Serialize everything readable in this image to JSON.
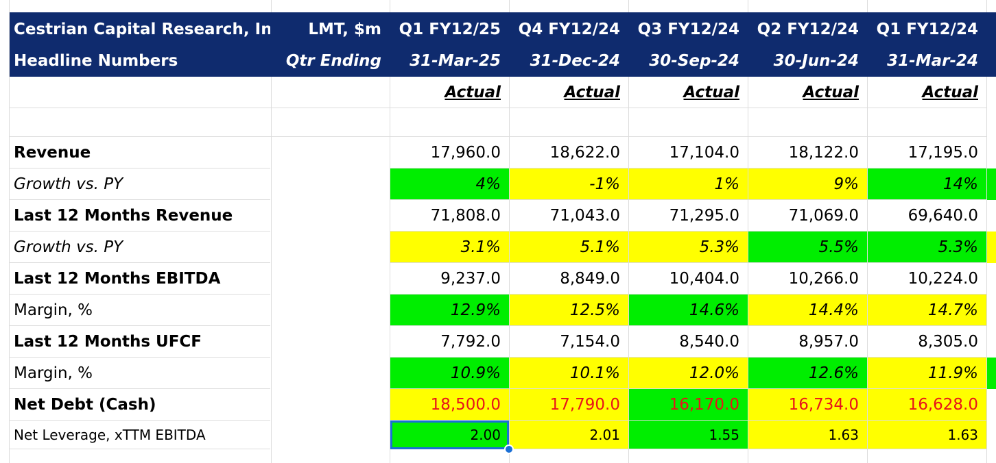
{
  "header": {
    "company": "Cestrian Capital Research, Inc",
    "subtitle": "Headline Numbers",
    "ticker": "LMT, $m",
    "qtr_ending_label": "Qtr Ending",
    "quarters": [
      "Q1 FY12/25",
      "Q4 FY12/24",
      "Q3 FY12/24",
      "Q2 FY12/24",
      "Q1 FY12/24"
    ],
    "dates": [
      "31-Mar-25",
      "31-Dec-24",
      "30-Sep-24",
      "30-Jun-24",
      "31-Mar-24"
    ],
    "status": [
      "Actual",
      "Actual",
      "Actual",
      "Actual",
      "Actual"
    ]
  },
  "colors": {
    "header_bg": "#0f2b6e",
    "green": "#00ee00",
    "yellow": "#ffff00",
    "red_text": "#e8141a",
    "selection": "#1a6fd6"
  },
  "rows": [
    {
      "label": "Revenue",
      "values": [
        "17,960.0",
        "18,622.0",
        "17,104.0",
        "18,122.0",
        "17,195.0"
      ]
    },
    {
      "label": "Growth vs. PY",
      "values": [
        "4%",
        "-1%",
        "1%",
        "9%",
        "14%"
      ]
    },
    {
      "label": "Last 12 Months Revenue",
      "values": [
        "71,808.0",
        "71,043.0",
        "71,295.0",
        "71,069.0",
        "69,640.0"
      ]
    },
    {
      "label": "Growth vs. PY",
      "values": [
        "3.1%",
        "5.1%",
        "5.3%",
        "5.5%",
        "5.3%"
      ]
    },
    {
      "label": "Last 12 Months EBITDA",
      "values": [
        "9,237.0",
        "8,849.0",
        "10,404.0",
        "10,266.0",
        "10,224.0"
      ]
    },
    {
      "label": "Margin, %",
      "values": [
        "12.9%",
        "12.5%",
        "14.6%",
        "14.4%",
        "14.7%"
      ]
    },
    {
      "label": "Last 12 Months UFCF",
      "values": [
        "7,792.0",
        "7,154.0",
        "8,540.0",
        "8,957.0",
        "8,305.0"
      ]
    },
    {
      "label": "Margin, %",
      "values": [
        "10.9%",
        "10.1%",
        "12.0%",
        "12.6%",
        "11.9%"
      ]
    },
    {
      "label": "Net Debt (Cash)",
      "values": [
        "18,500.0",
        "17,790.0",
        "16,170.0",
        "16,734.0",
        "16,628.0"
      ]
    },
    {
      "label": "Net Leverage, xTTM EBITDA",
      "values": [
        "2.00",
        "2.01",
        "1.55",
        "1.63",
        "1.63"
      ]
    }
  ],
  "fills": {
    "1": [
      "green",
      "yellow",
      "yellow",
      "yellow",
      "green"
    ],
    "3": [
      "yellow",
      "yellow",
      "yellow",
      "green",
      "green"
    ],
    "5": [
      "green",
      "yellow",
      "green",
      "yellow",
      "yellow"
    ],
    "7": [
      "green",
      "yellow",
      "yellow",
      "green",
      "yellow"
    ],
    "8": [
      "yellow",
      "yellow",
      "green",
      "yellow",
      "yellow"
    ],
    "9": [
      "green",
      "yellow",
      "green",
      "yellow",
      "yellow"
    ]
  }
}
